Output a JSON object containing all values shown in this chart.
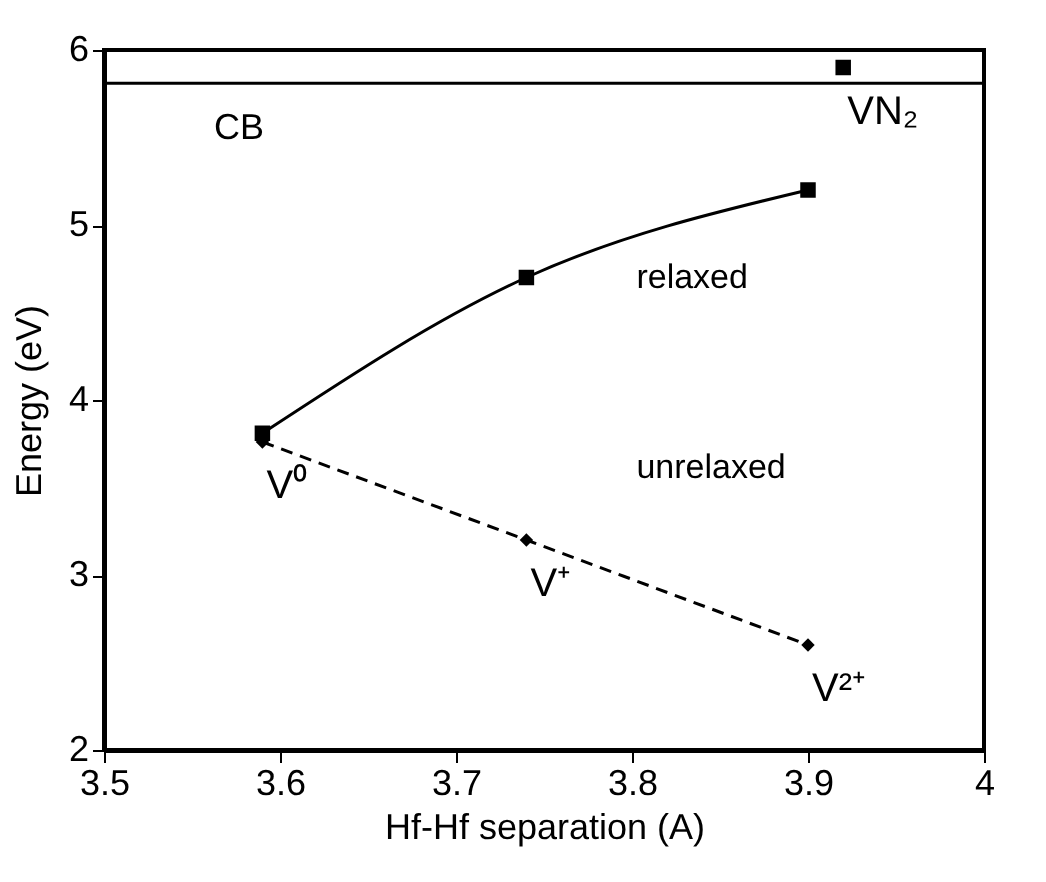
{
  "chart_data": {
    "type": "line",
    "xlabel": "Hf-Hf separation (A)",
    "ylabel": "Energy (eV)",
    "xlim": [
      3.5,
      4
    ],
    "xticks": [
      3.5,
      3.6,
      3.7,
      3.8,
      3.9,
      4
    ],
    "ylim": [
      2,
      6
    ],
    "yticks": [
      2,
      3,
      4,
      5,
      6
    ],
    "grid": false,
    "legend": false,
    "series": [
      {
        "name": "relaxed",
        "type": "line",
        "color": "#000000",
        "marker": "square",
        "line_style": "solid",
        "x": [
          3.59,
          3.74,
          3.9
        ],
        "values": [
          3.81,
          4.7,
          5.2
        ]
      },
      {
        "name": "unrelaxed",
        "type": "line",
        "color": "#000000",
        "marker": "diamond",
        "line_style": "dashed",
        "x": [
          3.59,
          3.74,
          3.9
        ],
        "values": [
          3.76,
          3.2,
          2.6
        ]
      },
      {
        "type": "scatter",
        "color": "#000000",
        "marker": "square",
        "x": [
          3.92
        ],
        "values": [
          5.9
        ]
      }
    ],
    "ref_lines": [
      {
        "axis": "y",
        "value": 5.81,
        "label": "CB",
        "color": "#000000"
      }
    ],
    "annotations": [
      {
        "text": "V⁰",
        "x": 3.59,
        "y": 3.76
      },
      {
        "text": "V⁺",
        "x": 3.74,
        "y": 3.2
      },
      {
        "text": "V²⁺",
        "x": 3.9,
        "y": 2.6
      },
      {
        "text": "VN₂",
        "x": 3.92,
        "y": 5.9
      }
    ]
  }
}
